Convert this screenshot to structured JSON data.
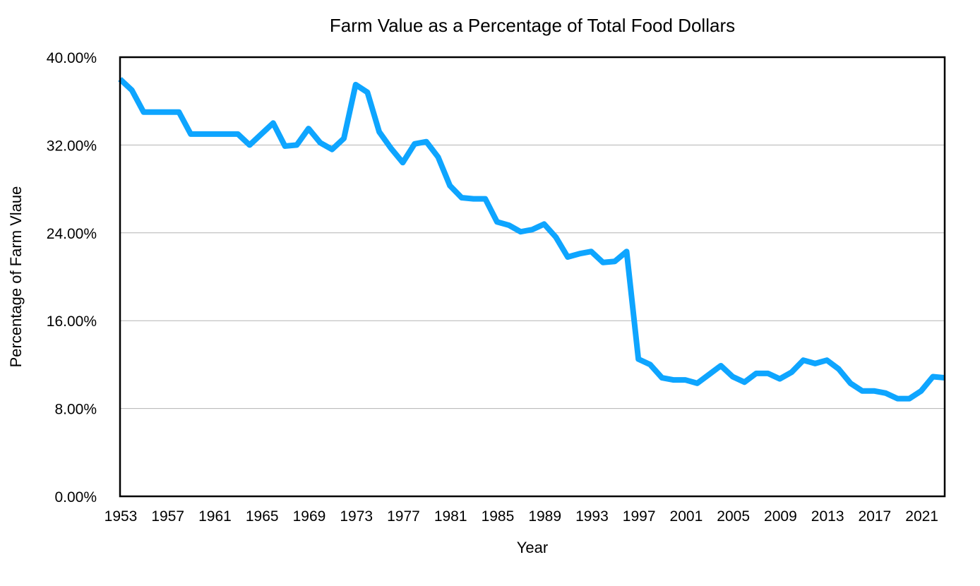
{
  "chart_data": {
    "type": "line",
    "title": "Farm Value as a Percentage of Total Food Dollars",
    "xlabel": "Year",
    "ylabel": "Percentage of Farm Vlaue",
    "xlim": [
      1953,
      2023
    ],
    "ylim": [
      0,
      40
    ],
    "y_ticks": [
      0,
      8,
      16,
      24,
      32,
      40
    ],
    "y_tick_labels": [
      "0.00%",
      "8.00%",
      "16.00%",
      "24.00%",
      "32.00%",
      "40.00%"
    ],
    "x_ticks": [
      1953,
      1957,
      1961,
      1965,
      1969,
      1973,
      1977,
      1981,
      1985,
      1989,
      1993,
      1997,
      2001,
      2005,
      2009,
      2013,
      2017,
      2021
    ],
    "x_tick_labels": [
      "1953",
      "1957",
      "1961",
      "1965",
      "1969",
      "1973",
      "1977",
      "1981",
      "1985",
      "1989",
      "1993",
      "1997",
      "2001",
      "2005",
      "2009",
      "2013",
      "2017",
      "2021"
    ],
    "grid": "horizontal",
    "color": "#0ea5ff",
    "series": [
      {
        "name": "Farm Value",
        "x": [
          1953,
          1954,
          1955,
          1956,
          1957,
          1958,
          1959,
          1960,
          1961,
          1962,
          1963,
          1964,
          1965,
          1966,
          1967,
          1968,
          1969,
          1970,
          1971,
          1972,
          1973,
          1974,
          1975,
          1976,
          1977,
          1978,
          1979,
          1980,
          1981,
          1982,
          1983,
          1984,
          1985,
          1986,
          1987,
          1988,
          1989,
          1990,
          1991,
          1992,
          1993,
          1994,
          1995,
          1996,
          1997,
          1998,
          1999,
          2000,
          2001,
          2002,
          2003,
          2004,
          2005,
          2006,
          2007,
          2008,
          2009,
          2010,
          2011,
          2012,
          2013,
          2014,
          2015,
          2016,
          2017,
          2018,
          2019,
          2020,
          2021,
          2022,
          2023
        ],
        "values": [
          38.0,
          37.0,
          35.0,
          35.0,
          35.0,
          35.0,
          33.0,
          33.0,
          33.0,
          33.0,
          33.0,
          32.0,
          33.0,
          34.0,
          31.9,
          32.0,
          33.5,
          32.2,
          31.6,
          32.6,
          37.5,
          36.8,
          33.2,
          31.7,
          30.4,
          32.1,
          32.3,
          30.9,
          28.3,
          27.2,
          27.1,
          27.1,
          25.0,
          24.7,
          24.1,
          24.3,
          24.8,
          23.6,
          21.8,
          22.1,
          22.3,
          21.3,
          21.4,
          22.3,
          12.5,
          12.0,
          10.8,
          10.6,
          10.6,
          10.3,
          11.1,
          11.9,
          10.9,
          10.4,
          11.2,
          11.2,
          10.7,
          11.3,
          12.4,
          12.1,
          12.4,
          11.6,
          10.3,
          9.6,
          9.6,
          9.4,
          8.9,
          8.9,
          9.6,
          10.9,
          10.8
        ]
      }
    ]
  }
}
